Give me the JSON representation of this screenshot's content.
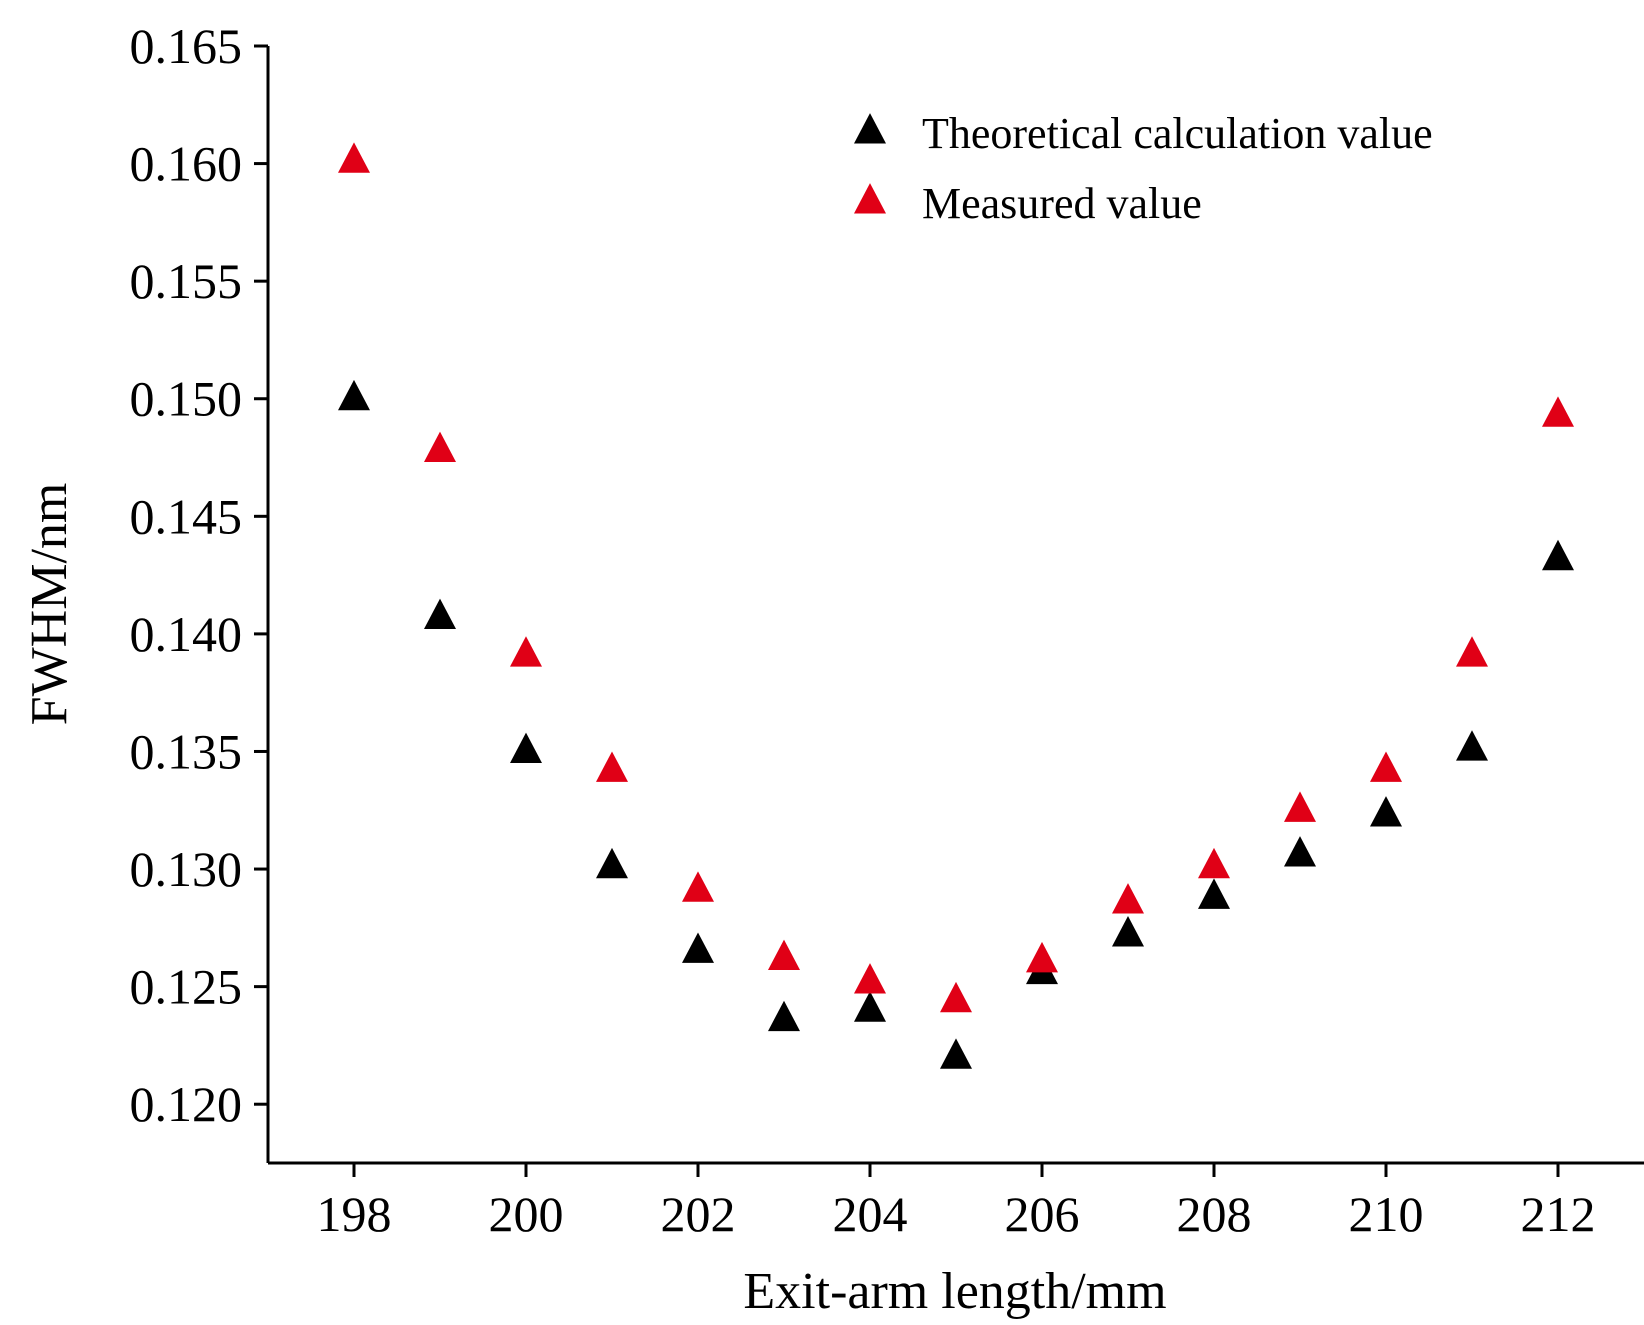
{
  "chart_data": {
    "type": "scatter",
    "xlabel": "Exit-arm length/mm",
    "ylabel": "FWHM/nm",
    "xlim": [
      197,
      213
    ],
    "ylim": [
      0.1175,
      0.165
    ],
    "x_ticks": [
      198,
      200,
      202,
      204,
      206,
      208,
      210,
      212
    ],
    "x_tick_labels": [
      "198",
      "200",
      "202",
      "204",
      "206",
      "208",
      "210",
      "212"
    ],
    "y_ticks": [
      0.12,
      0.125,
      0.13,
      0.135,
      0.14,
      0.145,
      0.15,
      0.155,
      0.16,
      0.165
    ],
    "y_tick_labels": [
      "0.120",
      "0.125",
      "0.130",
      "0.135",
      "0.140",
      "0.145",
      "0.150",
      "0.155",
      "0.160",
      "0.165"
    ],
    "grid": false,
    "legend_position": "top-right",
    "x": [
      198,
      199,
      200,
      201,
      202,
      203,
      204,
      205,
      206,
      207,
      208,
      209,
      210,
      211,
      212
    ],
    "series": [
      {
        "name": "Theoretical calculation value",
        "color": "#000000",
        "marker": "triangle",
        "values": [
          0.15,
          0.1407,
          0.135,
          0.1301,
          0.1265,
          0.1236,
          0.124,
          0.122,
          0.1256,
          0.1272,
          0.1288,
          0.1306,
          0.1323,
          0.1351,
          0.1432
        ]
      },
      {
        "name": "Measured value",
        "color": "#e00016",
        "marker": "triangle",
        "values": [
          0.1601,
          0.1478,
          0.1391,
          0.1342,
          0.1291,
          0.1262,
          0.1252,
          0.1244,
          0.1261,
          0.1286,
          0.1301,
          0.1325,
          0.1342,
          0.1391,
          0.1493
        ]
      }
    ]
  }
}
